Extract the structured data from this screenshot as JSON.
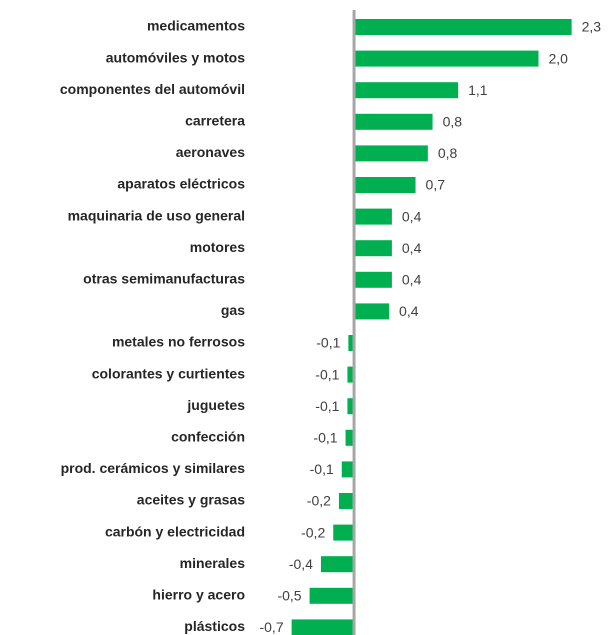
{
  "chart_data": {
    "type": "bar",
    "orientation": "horizontal",
    "color": "#00b050",
    "categories": [
      "medicamentos",
      "automóviles y motos",
      "componentes del automóvil",
      "carretera",
      "aeronaves",
      "aparatos eléctricos",
      "maquinaria de uso general",
      "motores",
      "otras semimanufacturas",
      "gas",
      "metales no ferrosos",
      "colorantes y curtientes",
      "juguetes",
      "confección",
      "prod. cerámicos y similares",
      "aceites y grasas",
      "carbón y electricidad",
      "minerales",
      "hierro y acero",
      "plásticos"
    ],
    "values": [
      2.3,
      1.95,
      1.1,
      0.83,
      0.78,
      0.65,
      0.4,
      0.4,
      0.4,
      0.37,
      -0.06,
      -0.07,
      -0.07,
      -0.09,
      -0.13,
      -0.16,
      -0.22,
      -0.35,
      -0.47,
      -0.66
    ],
    "value_labels": [
      "2,3",
      "2,0",
      "1,1",
      "0,8",
      "0,8",
      "0,7",
      "0,4",
      "0,4",
      "0,4",
      "0,4",
      "-0,1",
      "-0,1",
      "-0,1",
      "-0,1",
      "-0,1",
      "-0,2",
      "-0,2",
      "-0,4",
      "-0,5",
      "-0,7"
    ],
    "xlim": [
      -1.1,
      2.6
    ]
  }
}
